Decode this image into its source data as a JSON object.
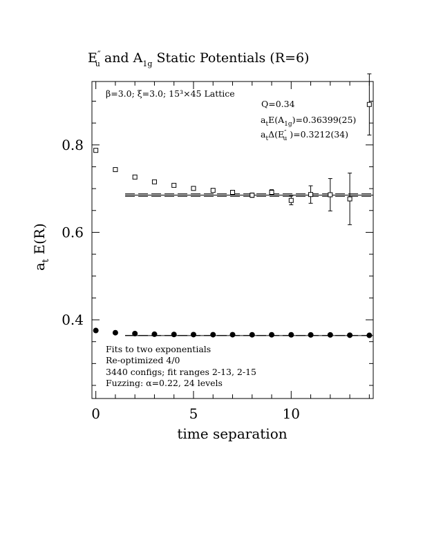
{
  "chart_data": {
    "type": "scatter",
    "title_parts": {
      "e_main": "E",
      "e_prime": "″",
      "e_sub": "u",
      "connector": " and ",
      "a_main": "A",
      "a_sub": "1g",
      "rest": " Static Potentials (R=6)"
    },
    "xlabel": "time separation",
    "ylabel_main": "a",
    "ylabel_sub": "t",
    "ylabel_rest": " E(R)",
    "xlim": [
      -0.2,
      14.2
    ],
    "ylim": [
      0.22,
      0.945
    ],
    "x_ticks": [
      0,
      5,
      10
    ],
    "x_tick_labels": [
      "0",
      "5",
      "10"
    ],
    "y_ticks": [
      0.4,
      0.6,
      0.8
    ],
    "y_tick_labels": [
      "0.4",
      "0.6",
      "0.8"
    ],
    "lattice_text": "β=3.0; ξ=3.0; 15³×45 Lattice",
    "q_text": "Q=0.34",
    "fit_a1g": {
      "prefix": "a",
      "sub": "t",
      "mid": "E(A",
      "sub2": "1g",
      "rest": ")=0.36399(25)"
    },
    "fit_eu": {
      "prefix": "a",
      "sub": "t",
      "mid": "Δ(E",
      "prime": "″",
      "sub2": "u",
      "rest": " )=0.3212(34)"
    },
    "notes": [
      "Fits to two exponentials",
      "Re-optimized 4/0",
      "3440 configs; fit ranges 2-13, 2-15",
      "Fuzzing: α=0.22, 24 levels"
    ],
    "series": [
      {
        "marker": "open-square",
        "x": [
          0,
          1,
          2,
          3,
          4,
          5,
          6,
          7,
          8,
          9,
          10,
          11,
          12,
          13,
          14
        ],
        "y": [
          0.7875,
          0.7435,
          0.7265,
          0.7155,
          0.7075,
          0.7005,
          0.696,
          0.6915,
          0.685,
          0.6915,
          0.673,
          0.6865,
          0.686,
          0.6765,
          0.8925
        ],
        "err": [
          0.001,
          0.001,
          0.001,
          0.001,
          0.0015,
          0.002,
          0.003,
          0.004,
          0.005,
          0.006,
          0.01,
          0.02,
          0.037,
          0.059,
          0.07
        ],
        "fit": {
          "value": 0.6852,
          "err": 0.003,
          "x_range": [
            1.5,
            14.2
          ]
        }
      },
      {
        "marker": "filled-circle",
        "x": [
          0,
          1,
          2,
          3,
          4,
          5,
          6,
          7,
          8,
          9,
          10,
          11,
          12,
          13,
          14
        ],
        "y": [
          0.3755,
          0.3705,
          0.3685,
          0.367,
          0.3665,
          0.3662,
          0.366,
          0.366,
          0.3658,
          0.3658,
          0.3657,
          0.3655,
          0.3655,
          0.3648,
          0.3645
        ],
        "err": [
          0,
          0,
          0,
          0,
          0,
          0,
          0,
          0,
          0,
          0,
          0,
          0,
          0,
          0,
          0
        ],
        "fit": {
          "value": 0.36399,
          "err": 0.00025,
          "x_range": [
            1.5,
            14.2
          ]
        }
      }
    ]
  }
}
